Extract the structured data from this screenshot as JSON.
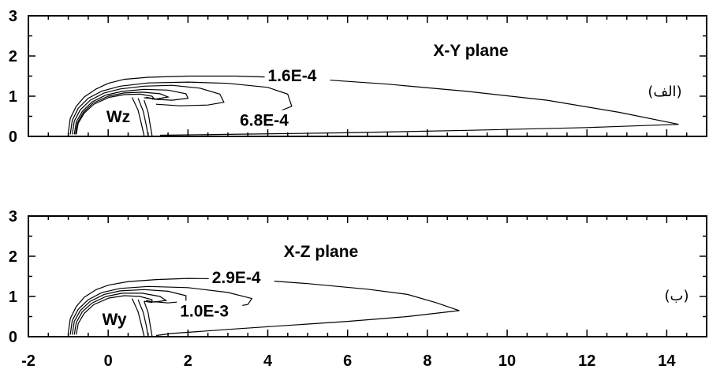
{
  "chart_data": [
    {
      "type": "contour",
      "title": "X-Y plane",
      "panel_tag": "(الف)",
      "body_label": "Wz",
      "xlim": [
        -2,
        15
      ],
      "ylim": [
        0,
        3
      ],
      "xticks": [
        -2,
        0,
        2,
        4,
        6,
        8,
        10,
        12,
        14
      ],
      "yticks": [
        0,
        1,
        2,
        3
      ],
      "x_tick_labels_visible": false,
      "grid": false,
      "contours": [
        {
          "label": "1.6E-4",
          "label_at": [
            4.0,
            1.49
          ],
          "points": [
            [
              -1.0,
              0.1
            ],
            [
              -0.95,
              0.45
            ],
            [
              -0.8,
              0.75
            ],
            [
              -0.6,
              0.98
            ],
            [
              -0.3,
              1.18
            ],
            [
              0.0,
              1.32
            ],
            [
              0.4,
              1.42
            ],
            [
              1.0,
              1.47
            ],
            [
              2.0,
              1.5
            ],
            [
              3.2,
              1.5
            ],
            [
              4.8,
              1.45
            ],
            [
              7.0,
              1.3
            ],
            [
              9.0,
              1.12
            ],
            [
              11.0,
              0.9
            ],
            [
              12.8,
              0.6
            ],
            [
              14.3,
              0.3
            ],
            [
              12.0,
              0.22
            ],
            [
              9.0,
              0.15
            ],
            [
              6.0,
              0.09
            ],
            [
              3.0,
              0.05
            ],
            [
              1.3,
              0.03
            ]
          ]
        },
        {
          "label": "6.8E-4",
          "label_at": [
            3.3,
            0.38
          ],
          "points": [
            [
              -0.95,
              0.05
            ],
            [
              -0.9,
              0.4
            ],
            [
              -0.75,
              0.7
            ],
            [
              -0.5,
              0.95
            ],
            [
              -0.15,
              1.13
            ],
            [
              0.3,
              1.25
            ],
            [
              1.0,
              1.33
            ],
            [
              2.0,
              1.35
            ],
            [
              3.0,
              1.32
            ],
            [
              4.0,
              1.22
            ],
            [
              4.5,
              1.05
            ],
            [
              4.6,
              0.75
            ],
            [
              4.1,
              0.55
            ],
            [
              3.6,
              0.48
            ]
          ]
        },
        {
          "points": [
            [
              -0.9,
              0.05
            ],
            [
              -0.85,
              0.38
            ],
            [
              -0.7,
              0.66
            ],
            [
              -0.45,
              0.9
            ],
            [
              -0.1,
              1.08
            ],
            [
              0.3,
              1.18
            ],
            [
              0.9,
              1.25
            ],
            [
              1.6,
              1.27
            ],
            [
              2.3,
              1.2
            ],
            [
              2.8,
              1.05
            ],
            [
              2.9,
              0.85
            ],
            [
              2.5,
              0.78
            ],
            [
              1.8,
              0.76
            ],
            [
              1.2,
              0.8
            ]
          ]
        },
        {
          "points": [
            [
              -0.85,
              0.05
            ],
            [
              -0.8,
              0.36
            ],
            [
              -0.65,
              0.62
            ],
            [
              -0.4,
              0.86
            ],
            [
              -0.05,
              1.03
            ],
            [
              0.35,
              1.12
            ],
            [
              0.9,
              1.17
            ],
            [
              1.5,
              1.15
            ],
            [
              1.95,
              1.06
            ],
            [
              2.0,
              0.95
            ],
            [
              1.6,
              0.9
            ],
            [
              1.1,
              0.93
            ]
          ]
        },
        {
          "points": [
            [
              -0.82,
              0.05
            ],
            [
              -0.77,
              0.34
            ],
            [
              -0.62,
              0.6
            ],
            [
              -0.38,
              0.83
            ],
            [
              0.0,
              1.0
            ],
            [
              0.4,
              1.08
            ],
            [
              0.85,
              1.1
            ],
            [
              1.3,
              1.06
            ],
            [
              1.5,
              0.98
            ],
            [
              1.2,
              0.93
            ],
            [
              0.95,
              0.97
            ]
          ]
        },
        {
          "points": [
            [
              -0.8,
              0.05
            ],
            [
              -0.75,
              0.33
            ],
            [
              -0.6,
              0.58
            ],
            [
              -0.36,
              0.8
            ],
            [
              0.02,
              0.97
            ],
            [
              0.4,
              1.04
            ],
            [
              0.8,
              1.05
            ],
            [
              1.1,
              1.0
            ],
            [
              1.15,
              0.94
            ],
            [
              0.9,
              0.96
            ]
          ]
        },
        {
          "points": [
            [
              0.9,
              0.9
            ],
            [
              1.0,
              0.6
            ],
            [
              1.05,
              0.3
            ],
            [
              1.1,
              0.02
            ]
          ]
        },
        {
          "points": [
            [
              0.75,
              0.95
            ],
            [
              0.88,
              0.62
            ],
            [
              0.95,
              0.3
            ],
            [
              1.0,
              0.02
            ]
          ]
        },
        {
          "points": [
            [
              0.6,
              0.97
            ],
            [
              0.75,
              0.65
            ],
            [
              0.83,
              0.32
            ],
            [
              0.9,
              0.02
            ]
          ]
        }
      ]
    },
    {
      "type": "contour",
      "title": "X-Z plane",
      "panel_tag": "(ب)",
      "body_label": "Wy",
      "xlim": [
        -2,
        15
      ],
      "ylim": [
        0,
        3
      ],
      "xticks": [
        -2,
        0,
        2,
        4,
        6,
        8,
        10,
        12,
        14
      ],
      "yticks": [
        0,
        1,
        2,
        3
      ],
      "x_tick_labels_visible": true,
      "grid": false,
      "contours": [
        {
          "label": "2.9E-4",
          "label_at": [
            2.6,
            1.45
          ],
          "points": [
            [
              -1.0,
              0.1
            ],
            [
              -0.95,
              0.45
            ],
            [
              -0.8,
              0.75
            ],
            [
              -0.6,
              0.98
            ],
            [
              -0.3,
              1.17
            ],
            [
              0.0,
              1.28
            ],
            [
              0.5,
              1.37
            ],
            [
              1.2,
              1.42
            ],
            [
              2.0,
              1.45
            ],
            [
              3.5,
              1.43
            ],
            [
              5.0,
              1.32
            ],
            [
              6.5,
              1.18
            ],
            [
              7.5,
              1.05
            ],
            [
              8.2,
              0.85
            ],
            [
              8.8,
              0.65
            ],
            [
              7.5,
              0.5
            ],
            [
              6.0,
              0.38
            ],
            [
              4.5,
              0.28
            ],
            [
              3.0,
              0.18
            ],
            [
              1.6,
              0.08
            ],
            [
              1.2,
              0.03
            ]
          ]
        },
        {
          "label": "1.0E-3",
          "label_at": [
            1.8,
            0.62
          ],
          "points": [
            [
              -0.95,
              0.05
            ],
            [
              -0.9,
              0.4
            ],
            [
              -0.75,
              0.68
            ],
            [
              -0.5,
              0.92
            ],
            [
              -0.15,
              1.1
            ],
            [
              0.3,
              1.2
            ],
            [
              1.0,
              1.25
            ],
            [
              2.0,
              1.22
            ],
            [
              3.0,
              1.1
            ],
            [
              3.6,
              0.95
            ],
            [
              3.5,
              0.8
            ],
            [
              3.0,
              0.72
            ],
            [
              2.6,
              0.68
            ]
          ]
        },
        {
          "points": [
            [
              -0.9,
              0.05
            ],
            [
              -0.85,
              0.38
            ],
            [
              -0.7,
              0.65
            ],
            [
              -0.45,
              0.88
            ],
            [
              -0.1,
              1.05
            ],
            [
              0.3,
              1.14
            ],
            [
              0.9,
              1.17
            ],
            [
              1.5,
              1.13
            ],
            [
              1.95,
              1.02
            ],
            [
              1.95,
              0.88
            ],
            [
              1.5,
              0.84
            ],
            [
              1.15,
              0.87
            ]
          ]
        },
        {
          "points": [
            [
              -0.85,
              0.05
            ],
            [
              -0.8,
              0.35
            ],
            [
              -0.65,
              0.62
            ],
            [
              -0.4,
              0.84
            ],
            [
              -0.05,
              1.0
            ],
            [
              0.35,
              1.08
            ],
            [
              0.85,
              1.08
            ],
            [
              1.3,
              1.0
            ],
            [
              1.45,
              0.9
            ],
            [
              1.15,
              0.86
            ],
            [
              0.95,
              0.9
            ]
          ]
        },
        {
          "points": [
            [
              -0.8,
              0.05
            ],
            [
              -0.75,
              0.33
            ],
            [
              -0.6,
              0.58
            ],
            [
              -0.36,
              0.8
            ],
            [
              0.02,
              0.96
            ],
            [
              0.4,
              1.02
            ],
            [
              0.8,
              1.0
            ],
            [
              1.1,
              0.92
            ],
            [
              1.1,
              0.85
            ],
            [
              0.9,
              0.88
            ]
          ]
        },
        {
          "points": [
            [
              0.9,
              0.88
            ],
            [
              1.0,
              0.6
            ],
            [
              1.05,
              0.3
            ],
            [
              1.1,
              0.02
            ]
          ]
        },
        {
          "points": [
            [
              0.75,
              0.92
            ],
            [
              0.88,
              0.6
            ],
            [
              0.95,
              0.3
            ],
            [
              1.0,
              0.02
            ]
          ]
        },
        {
          "points": [
            [
              0.6,
              0.95
            ],
            [
              0.75,
              0.62
            ],
            [
              0.83,
              0.3
            ],
            [
              0.9,
              0.02
            ]
          ]
        }
      ]
    }
  ]
}
